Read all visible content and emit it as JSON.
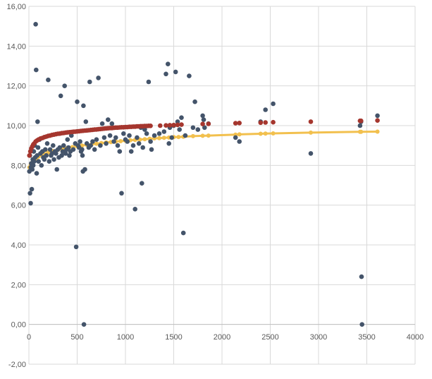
{
  "chart_data": {
    "type": "scatter",
    "title": "",
    "xlabel": "",
    "ylabel": "",
    "xlim": [
      0,
      4000
    ],
    "ylim": [
      -2,
      16
    ],
    "x_ticks": [
      0,
      500,
      1000,
      1500,
      2000,
      2500,
      3000,
      3500,
      4000
    ],
    "x_tick_labels": [
      "0",
      "500",
      "1000",
      "1500",
      "2000",
      "2500",
      "3000",
      "3500",
      "4000"
    ],
    "y_ticks": [
      -2,
      0,
      2,
      4,
      6,
      8,
      10,
      12,
      14,
      16
    ],
    "y_tick_labels": [
      "-2,00",
      "0,00",
      "2,00",
      "4,00",
      "6,00",
      "8,00",
      "10,00",
      "12,00",
      "14,00",
      "16,00"
    ],
    "grid": true,
    "legend": "none",
    "colors": {
      "observed": "#44546a",
      "fit_red": "#a5362e",
      "fit_yellow": "#f2c04e"
    },
    "series": [
      {
        "kind": "points",
        "color": "#44546a",
        "points": [
          [
            5,
            7.7
          ],
          [
            10,
            8.5
          ],
          [
            12,
            6.6
          ],
          [
            18,
            6.1
          ],
          [
            20,
            7.9
          ],
          [
            25,
            8.1
          ],
          [
            30,
            6.8
          ],
          [
            35,
            7.8
          ],
          [
            40,
            8.3
          ],
          [
            45,
            8.0
          ],
          [
            50,
            8.7
          ],
          [
            55,
            8.2
          ],
          [
            60,
            9.0
          ],
          [
            65,
            8.4
          ],
          [
            70,
            15.1
          ],
          [
            75,
            12.8
          ],
          [
            80,
            7.6
          ],
          [
            85,
            8.5
          ],
          [
            90,
            10.2
          ],
          [
            95,
            8.9
          ],
          [
            100,
            8.2
          ],
          [
            110,
            9.3
          ],
          [
            120,
            8.6
          ],
          [
            130,
            8.0
          ],
          [
            140,
            8.7
          ],
          [
            150,
            8.4
          ],
          [
            160,
            8.3
          ],
          [
            170,
            8.8
          ],
          [
            180,
            8.5
          ],
          [
            190,
            9.1
          ],
          [
            200,
            12.3
          ],
          [
            210,
            8.2
          ],
          [
            220,
            8.8
          ],
          [
            230,
            8.5
          ],
          [
            240,
            8.6
          ],
          [
            250,
            9.0
          ],
          [
            260,
            8.3
          ],
          [
            270,
            8.7
          ],
          [
            280,
            8.6
          ],
          [
            290,
            7.8
          ],
          [
            300,
            8.8
          ],
          [
            310,
            8.4
          ],
          [
            320,
            8.9
          ],
          [
            330,
            11.5
          ],
          [
            340,
            8.5
          ],
          [
            350,
            8.7
          ],
          [
            360,
            9.0
          ],
          [
            370,
            12.0
          ],
          [
            380,
            8.6
          ],
          [
            390,
            8.8
          ],
          [
            400,
            9.3
          ],
          [
            410,
            8.9
          ],
          [
            420,
            8.5
          ],
          [
            430,
            8.7
          ],
          [
            440,
            9.5
          ],
          [
            460,
            8.8
          ],
          [
            480,
            9.1
          ],
          [
            490,
            3.9
          ],
          [
            500,
            11.2
          ],
          [
            510,
            9.0
          ],
          [
            520,
            8.9
          ],
          [
            530,
            9.2
          ],
          [
            540,
            8.7
          ],
          [
            550,
            8.8
          ],
          [
            555,
            8.5
          ],
          [
            560,
            7.7
          ],
          [
            565,
            11.0
          ],
          [
            570,
            0.0
          ],
          [
            580,
            7.8
          ],
          [
            590,
            10.2
          ],
          [
            600,
            9.1
          ],
          [
            620,
            8.9
          ],
          [
            630,
            12.2
          ],
          [
            640,
            9.0
          ],
          [
            660,
            9.2
          ],
          [
            680,
            8.8
          ],
          [
            700,
            9.3
          ],
          [
            720,
            12.4
          ],
          [
            740,
            9.0
          ],
          [
            760,
            10.1
          ],
          [
            780,
            9.4
          ],
          [
            800,
            9.1
          ],
          [
            820,
            10.3
          ],
          [
            840,
            9.5
          ],
          [
            860,
            10.1
          ],
          [
            880,
            9.2
          ],
          [
            900,
            9.4
          ],
          [
            920,
            9.0
          ],
          [
            940,
            8.7
          ],
          [
            960,
            6.6
          ],
          [
            980,
            9.6
          ],
          [
            1000,
            9.3
          ],
          [
            1020,
            9.2
          ],
          [
            1040,
            9.5
          ],
          [
            1060,
            8.7
          ],
          [
            1080,
            9.0
          ],
          [
            1100,
            5.8
          ],
          [
            1120,
            9.4
          ],
          [
            1140,
            9.1
          ],
          [
            1160,
            9.9
          ],
          [
            1170,
            7.1
          ],
          [
            1180,
            8.9
          ],
          [
            1200,
            9.8
          ],
          [
            1220,
            9.6
          ],
          [
            1240,
            12.2
          ],
          [
            1260,
            9.2
          ],
          [
            1270,
            8.8
          ],
          [
            1300,
            9.5
          ],
          [
            1350,
            9.6
          ],
          [
            1400,
            9.7
          ],
          [
            1420,
            12.6
          ],
          [
            1440,
            13.1
          ],
          [
            1450,
            9.1
          ],
          [
            1460,
            9.9
          ],
          [
            1480,
            9.4
          ],
          [
            1500,
            10.0
          ],
          [
            1520,
            12.7
          ],
          [
            1540,
            10.2
          ],
          [
            1560,
            9.8
          ],
          [
            1580,
            10.4
          ],
          [
            1600,
            4.6
          ],
          [
            1620,
            9.5
          ],
          [
            1660,
            12.5
          ],
          [
            1700,
            9.9
          ],
          [
            1720,
            11.2
          ],
          [
            1750,
            9.8
          ],
          [
            1800,
            10.5
          ],
          [
            1810,
            10.3
          ],
          [
            1820,
            9.9
          ],
          [
            1860,
            10.1
          ],
          [
            2140,
            9.4
          ],
          [
            2180,
            9.2
          ],
          [
            2400,
            10.2
          ],
          [
            2450,
            10.8
          ],
          [
            2530,
            11.1
          ],
          [
            2920,
            8.6
          ],
          [
            3430,
            10.0
          ],
          [
            3440,
            10.2
          ],
          [
            3445,
            2.4
          ],
          [
            3450,
            0.0
          ],
          [
            3610,
            10.5
          ]
        ]
      },
      {
        "kind": "fit-points",
        "color": "#a5362e",
        "points": [
          [
            5,
            8.5
          ],
          [
            15,
            8.7
          ],
          [
            25,
            8.85
          ],
          [
            35,
            8.95
          ],
          [
            45,
            9.05
          ],
          [
            55,
            9.1
          ],
          [
            70,
            9.2
          ],
          [
            85,
            9.25
          ],
          [
            100,
            9.3
          ],
          [
            120,
            9.35
          ],
          [
            140,
            9.38
          ],
          [
            160,
            9.42
          ],
          [
            180,
            9.45
          ],
          [
            200,
            9.48
          ],
          [
            220,
            9.5
          ],
          [
            240,
            9.53
          ],
          [
            260,
            9.55
          ],
          [
            280,
            9.57
          ],
          [
            300,
            9.59
          ],
          [
            320,
            9.6
          ],
          [
            340,
            9.62
          ],
          [
            360,
            9.63
          ],
          [
            380,
            9.65
          ],
          [
            400,
            9.66
          ],
          [
            420,
            9.67
          ],
          [
            440,
            9.68
          ],
          [
            460,
            9.69
          ],
          [
            480,
            9.7
          ],
          [
            500,
            9.71
          ],
          [
            520,
            9.72
          ],
          [
            540,
            9.73
          ],
          [
            560,
            9.74
          ],
          [
            580,
            9.75
          ],
          [
            600,
            9.76
          ],
          [
            620,
            9.77
          ],
          [
            640,
            9.78
          ],
          [
            660,
            9.79
          ],
          [
            680,
            9.8
          ],
          [
            700,
            9.81
          ],
          [
            720,
            9.82
          ],
          [
            740,
            9.83
          ],
          [
            760,
            9.84
          ],
          [
            780,
            9.85
          ],
          [
            800,
            9.86
          ],
          [
            820,
            9.87
          ],
          [
            840,
            9.88
          ],
          [
            860,
            9.88
          ],
          [
            880,
            9.89
          ],
          [
            900,
            9.9
          ],
          [
            920,
            9.9
          ],
          [
            940,
            9.91
          ],
          [
            960,
            9.92
          ],
          [
            980,
            9.92
          ],
          [
            1000,
            9.93
          ],
          [
            1020,
            9.93
          ],
          [
            1040,
            9.94
          ],
          [
            1060,
            9.94
          ],
          [
            1080,
            9.95
          ],
          [
            1100,
            9.95
          ],
          [
            1120,
            9.96
          ],
          [
            1140,
            9.96
          ],
          [
            1160,
            9.97
          ],
          [
            1180,
            9.97
          ],
          [
            1200,
            9.98
          ],
          [
            1220,
            9.98
          ],
          [
            1240,
            9.99
          ],
          [
            1260,
            9.99
          ],
          [
            1360,
            10.0
          ],
          [
            1420,
            10.01
          ],
          [
            1460,
            10.02
          ],
          [
            1500,
            10.03
          ],
          [
            1540,
            10.04
          ],
          [
            1580,
            10.05
          ],
          [
            1800,
            10.08
          ],
          [
            1860,
            10.09
          ],
          [
            2140,
            10.12
          ],
          [
            2180,
            10.13
          ],
          [
            2400,
            10.15
          ],
          [
            2450,
            10.16
          ],
          [
            2530,
            10.17
          ],
          [
            2920,
            10.2
          ],
          [
            3430,
            10.24
          ],
          [
            3440,
            10.24
          ],
          [
            3610,
            10.26
          ]
        ]
      },
      {
        "kind": "fit-line",
        "color": "#f2c04e",
        "points": [
          [
            5,
            7.9
          ],
          [
            20,
            8.05
          ],
          [
            40,
            8.2
          ],
          [
            60,
            8.3
          ],
          [
            80,
            8.38
          ],
          [
            100,
            8.45
          ],
          [
            130,
            8.52
          ],
          [
            160,
            8.58
          ],
          [
            200,
            8.65
          ],
          [
            250,
            8.72
          ],
          [
            300,
            8.78
          ],
          [
            350,
            8.83
          ],
          [
            400,
            8.88
          ],
          [
            450,
            8.92
          ],
          [
            500,
            8.96
          ],
          [
            550,
            9.0
          ],
          [
            600,
            9.03
          ],
          [
            650,
            9.06
          ],
          [
            700,
            9.09
          ],
          [
            750,
            9.12
          ],
          [
            800,
            9.15
          ],
          [
            850,
            9.17
          ],
          [
            900,
            9.2
          ],
          [
            950,
            9.22
          ],
          [
            1000,
            9.24
          ],
          [
            1050,
            9.26
          ],
          [
            1100,
            9.28
          ],
          [
            1150,
            9.3
          ],
          [
            1200,
            9.32
          ],
          [
            1250,
            9.34
          ],
          [
            1300,
            9.36
          ],
          [
            1350,
            9.37
          ],
          [
            1400,
            9.39
          ],
          [
            1450,
            9.4
          ],
          [
            1500,
            9.42
          ],
          [
            1550,
            9.43
          ],
          [
            1600,
            9.44
          ],
          [
            1700,
            9.47
          ],
          [
            1800,
            9.49
          ],
          [
            1860,
            9.5
          ],
          [
            2140,
            9.55
          ],
          [
            2180,
            9.56
          ],
          [
            2400,
            9.59
          ],
          [
            2450,
            9.6
          ],
          [
            2530,
            9.61
          ],
          [
            2920,
            9.65
          ],
          [
            3430,
            9.69
          ],
          [
            3440,
            9.69
          ],
          [
            3610,
            9.7
          ]
        ]
      }
    ]
  }
}
